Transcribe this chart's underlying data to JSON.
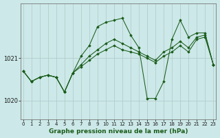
{
  "xlabel": "Graphe pression niveau de la mer (hPa)",
  "background_color": "#cce8e8",
  "grid_color": "#b0c8c8",
  "line_color": "#1a5c1a",
  "x_ticks": [
    0,
    1,
    2,
    3,
    4,
    5,
    6,
    7,
    8,
    9,
    10,
    11,
    12,
    13,
    14,
    15,
    16,
    17,
    18,
    19,
    20,
    21,
    22,
    23
  ],
  "y_ticks": [
    1020,
    1021
  ],
  "ylim": [
    1019.55,
    1022.3
  ],
  "xlim": [
    -0.3,
    23.3
  ],
  "series": [
    [
      1020.7,
      1020.45,
      1020.55,
      1020.6,
      1020.55,
      1020.2,
      1020.65,
      1021.05,
      1021.3,
      1021.75,
      1021.85,
      1021.9,
      1021.95,
      1021.55,
      1021.25,
      1020.05,
      1020.05,
      1020.45,
      1021.45,
      1021.9,
      1021.5,
      1021.6,
      1021.6,
      1020.85
    ],
    [
      1020.7,
      1020.45,
      1020.55,
      1020.6,
      1020.55,
      1020.2,
      1020.65,
      1020.85,
      1021.05,
      1021.2,
      1021.35,
      1021.45,
      1021.35,
      1021.25,
      1021.15,
      1021.05,
      1020.95,
      1021.15,
      1021.25,
      1021.4,
      1021.25,
      1021.5,
      1021.55,
      1020.85
    ],
    [
      1020.7,
      1020.45,
      1020.55,
      1020.6,
      1020.55,
      1020.2,
      1020.65,
      1020.8,
      1020.95,
      1021.1,
      1021.2,
      1021.3,
      1021.2,
      1021.15,
      1021.1,
      1021.0,
      1020.9,
      1021.05,
      1021.15,
      1021.3,
      1021.15,
      1021.45,
      1021.5,
      1020.85
    ]
  ]
}
